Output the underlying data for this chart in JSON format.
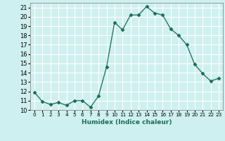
{
  "x": [
    0,
    1,
    2,
    3,
    4,
    5,
    6,
    7,
    8,
    9,
    10,
    11,
    12,
    13,
    14,
    15,
    16,
    17,
    18,
    19,
    20,
    21,
    22,
    23
  ],
  "y": [
    11.9,
    10.9,
    10.6,
    10.8,
    10.5,
    11.0,
    11.0,
    10.3,
    11.5,
    14.6,
    19.4,
    18.6,
    20.2,
    20.2,
    21.1,
    20.4,
    20.2,
    18.7,
    18.0,
    17.0,
    14.9,
    13.9,
    13.1,
    13.4
  ],
  "line_color": "#1a6b5a",
  "marker": "D",
  "marker_size": 2.5,
  "bg_color": "#cff0f0",
  "grid_color": "#ffffff",
  "xlabel": "Humidex (Indice chaleur)",
  "xlim": [
    -0.5,
    23.5
  ],
  "ylim": [
    10,
    21.5
  ],
  "yticks": [
    10,
    11,
    12,
    13,
    14,
    15,
    16,
    17,
    18,
    19,
    20,
    21
  ],
  "xticks": [
    0,
    1,
    2,
    3,
    4,
    5,
    6,
    7,
    8,
    9,
    10,
    11,
    12,
    13,
    14,
    15,
    16,
    17,
    18,
    19,
    20,
    21,
    22,
    23
  ]
}
